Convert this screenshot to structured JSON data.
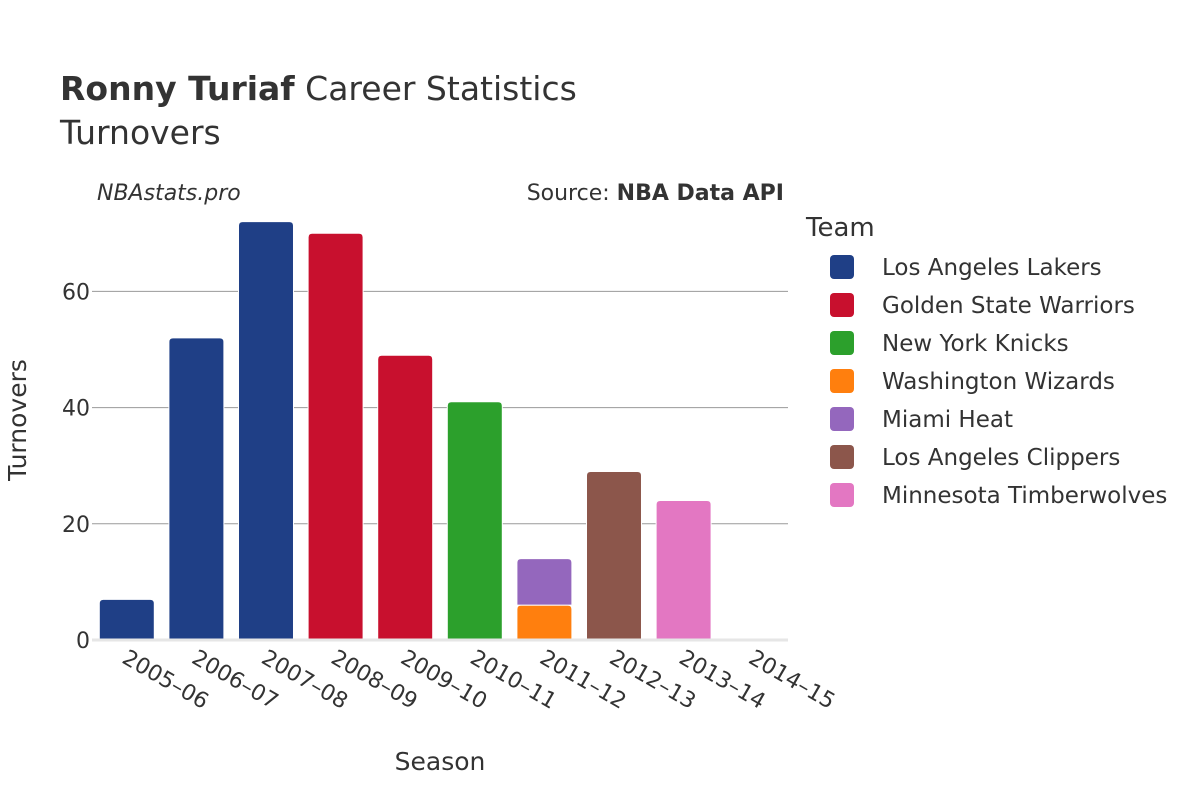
{
  "header": {
    "title_bold": "Ronny Turiaf",
    "title_rest": " Career Statistics",
    "subtitle": "Turnovers",
    "watermark": "NBAstats.pro",
    "source_prefix": "Source: ",
    "source_name": "NBA Data API"
  },
  "legend": {
    "title": "Team"
  },
  "chart_data": {
    "type": "bar",
    "stacked": true,
    "xlabel": "Season",
    "ylabel": "Turnovers",
    "ylim": [
      0,
      74
    ],
    "yticks": [
      0,
      20,
      40,
      60
    ],
    "grid": true,
    "legend_position": "right",
    "categories": [
      "2005–06",
      "2006–07",
      "2007–08",
      "2008–09",
      "2009–10",
      "2010–11",
      "2011–12",
      "2012–13",
      "2013–14",
      "2014–15"
    ],
    "series": [
      {
        "name": "Los Angeles Lakers",
        "color": "#1f3f86",
        "values": [
          7,
          52,
          72,
          0,
          0,
          0,
          0,
          0,
          0,
          0
        ]
      },
      {
        "name": "Golden State Warriors",
        "color": "#c8102e",
        "values": [
          0,
          0,
          0,
          70,
          49,
          0,
          0,
          0,
          0,
          0
        ]
      },
      {
        "name": "New York Knicks",
        "color": "#2ca02c",
        "values": [
          0,
          0,
          0,
          0,
          0,
          41,
          0,
          0,
          0,
          0
        ]
      },
      {
        "name": "Washington Wizards",
        "color": "#ff7f0e",
        "values": [
          0,
          0,
          0,
          0,
          0,
          0,
          6,
          0,
          0,
          0
        ]
      },
      {
        "name": "Miami Heat",
        "color": "#9467bd",
        "values": [
          0,
          0,
          0,
          0,
          0,
          0,
          8,
          0,
          0,
          0
        ]
      },
      {
        "name": "Los Angeles Clippers",
        "color": "#8c564b",
        "values": [
          0,
          0,
          0,
          0,
          0,
          0,
          0,
          29,
          0,
          0
        ]
      },
      {
        "name": "Minnesota Timberwolves",
        "color": "#e377c2",
        "values": [
          0,
          0,
          0,
          0,
          0,
          0,
          0,
          0,
          24,
          0
        ]
      }
    ]
  }
}
